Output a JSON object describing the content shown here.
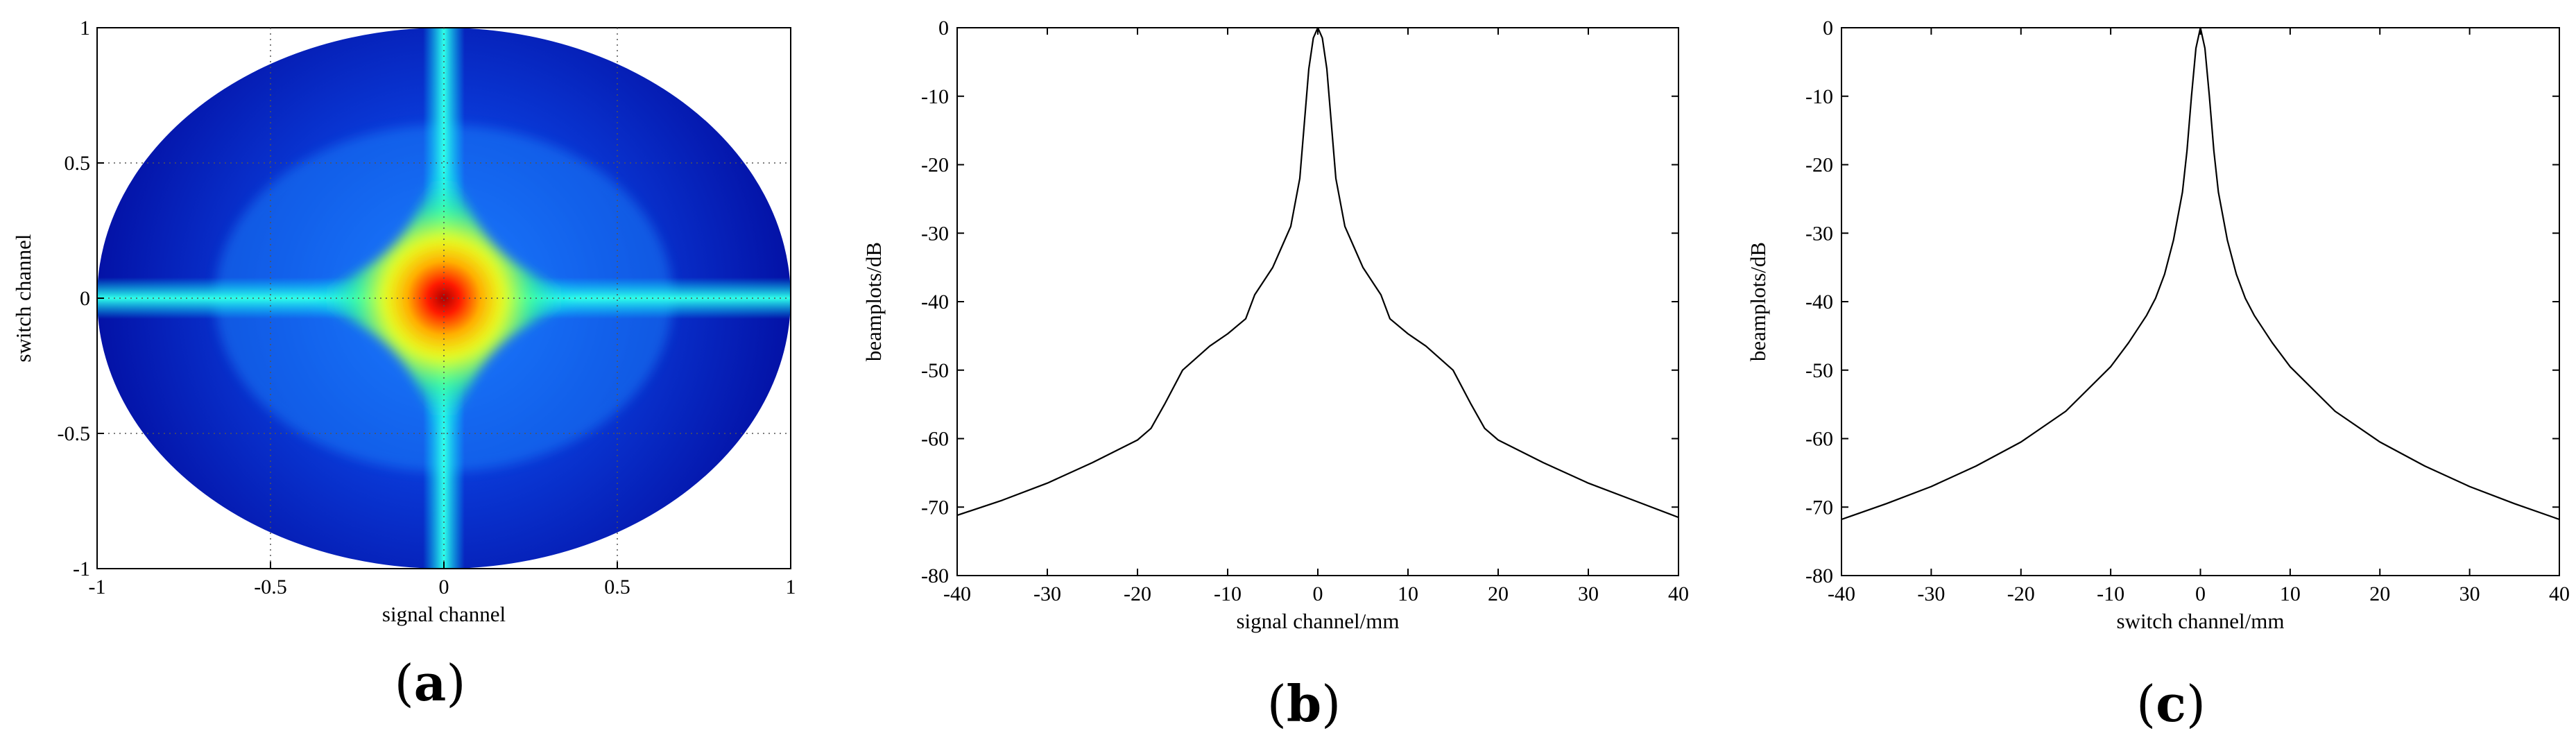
{
  "chart_data": [
    {
      "type": "heatmap",
      "panel_label": "a",
      "xlabel": "signal channel",
      "ylabel": "switch channel",
      "xlim": [
        -1,
        1
      ],
      "ylim": [
        -1,
        1
      ],
      "xticks": [
        -1,
        -0.5,
        0,
        0.5,
        1
      ],
      "yticks": [
        -1,
        -0.5,
        0,
        0.5,
        1
      ],
      "grid": true,
      "colormap": "jet",
      "description_values": {
        "peak_location": [
          0,
          0
        ],
        "peak_level": "max",
        "ridge_axes": [
          "x=0",
          "y=0"
        ]
      }
    },
    {
      "type": "line",
      "panel_label": "b",
      "xlabel": "signal channel/mm",
      "ylabel": "beamplots/dB",
      "xlim": [
        -40,
        40
      ],
      "ylim": [
        -80,
        0
      ],
      "xticks": [
        -40,
        -30,
        -20,
        -10,
        0,
        10,
        20,
        30,
        40
      ],
      "yticks": [
        0,
        -10,
        -20,
        -30,
        -40,
        -50,
        -60,
        -70,
        -80
      ],
      "grid": false,
      "series": [
        {
          "x": [
            -40,
            -35,
            -30,
            -25,
            -20,
            -18.5,
            -17,
            -15,
            -12,
            -10,
            -8,
            -7,
            -5,
            -4,
            -3,
            -2,
            -1.5,
            -1,
            -0.5,
            0,
            0.5,
            1,
            1.5,
            2,
            3,
            4,
            5,
            7,
            8,
            10,
            12,
            15,
            17,
            18.5,
            20,
            25,
            30,
            35,
            40
          ],
          "y": [
            -71.2,
            -69,
            -66.5,
            -63.5,
            -60.2,
            -58.5,
            -55,
            -50,
            -46.5,
            -44.7,
            -42.5,
            -39,
            -35,
            -32,
            -29,
            -22,
            -14,
            -6,
            -1.5,
            0,
            -1.5,
            -6,
            -14,
            -22,
            -29,
            -32,
            -35,
            -39,
            -42.5,
            -44.7,
            -46.5,
            -50,
            -55,
            -58.5,
            -60.2,
            -63.5,
            -66.5,
            -69,
            -71.5
          ]
        }
      ]
    },
    {
      "type": "line",
      "panel_label": "c",
      "xlabel": "switch channel/mm",
      "ylabel": "beamplots/dB",
      "xlim": [
        -40,
        40
      ],
      "ylim": [
        -80,
        0
      ],
      "xticks": [
        -40,
        -30,
        -20,
        -10,
        0,
        10,
        20,
        30,
        40
      ],
      "yticks": [
        0,
        -10,
        -20,
        -30,
        -40,
        -50,
        -60,
        -70,
        -80
      ],
      "grid": false,
      "series": [
        {
          "x": [
            -40,
            -35,
            -30,
            -25,
            -20,
            -15,
            -10,
            -8,
            -6,
            -5,
            -4,
            -3,
            -2,
            -1.5,
            -1,
            -0.5,
            0,
            0.5,
            1,
            1.5,
            2,
            3,
            4,
            5,
            6,
            8,
            10,
            15,
            20,
            25,
            30,
            35,
            40
          ],
          "y": [
            -71.8,
            -69.5,
            -67,
            -64,
            -60.5,
            -56,
            -49.5,
            -46,
            -42,
            -39.5,
            -36,
            -31,
            -24,
            -18,
            -10,
            -3,
            0,
            -3,
            -10,
            -18,
            -24,
            -31,
            -36,
            -39.5,
            -42,
            -46,
            -49.5,
            -56,
            -60.5,
            -64,
            -67,
            -69.5,
            -71.8
          ]
        }
      ]
    }
  ]
}
